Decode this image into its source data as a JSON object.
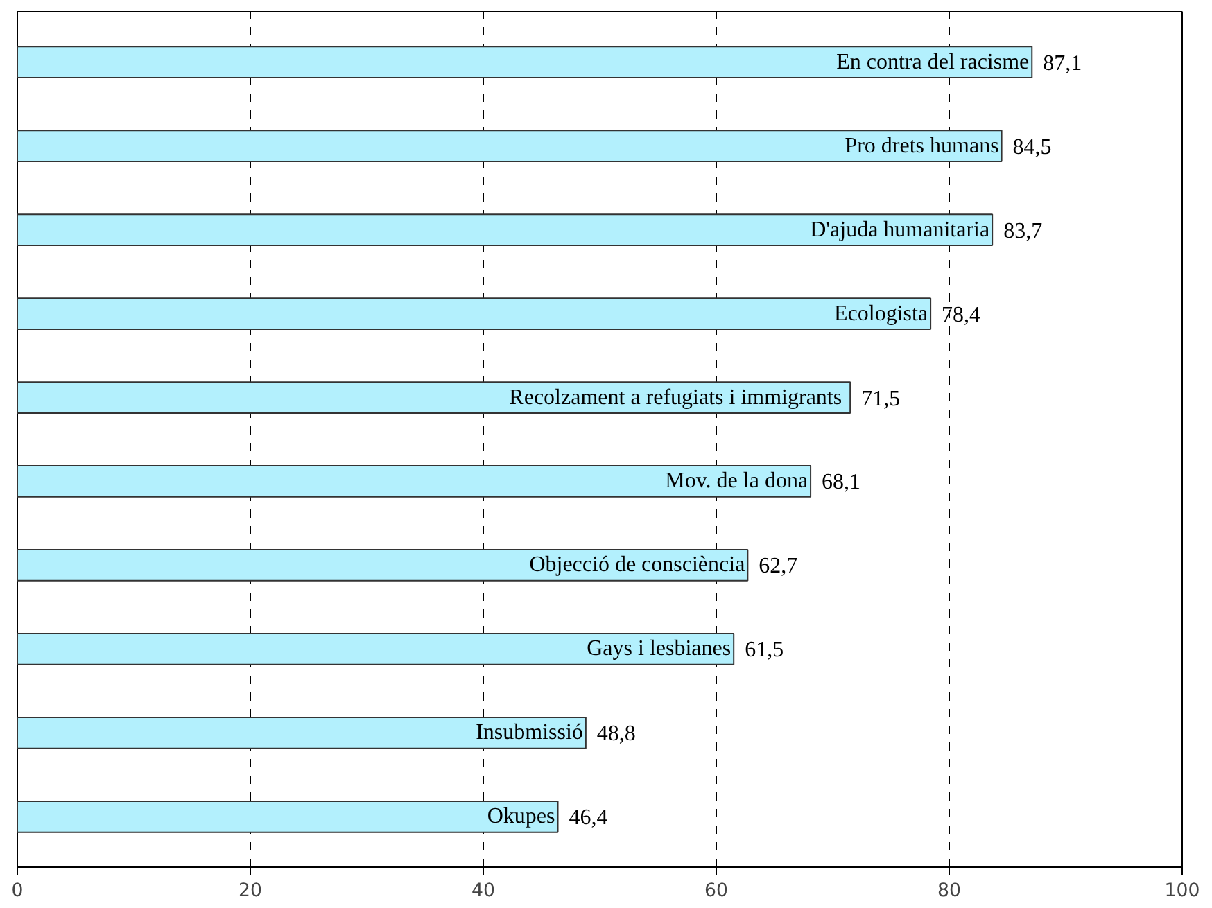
{
  "chart_data": {
    "type": "bar",
    "orientation": "horizontal",
    "categories": [
      "En contra del racisme",
      "Pro drets humans",
      "D'ajuda humanitaria",
      "Ecologista",
      "Recolzament a refugiats i  immigrants",
      "Mov. de la dona",
      "Objecció de consciència",
      "Gays i lesbianes",
      "Insubmissió",
      "Okupes"
    ],
    "values": [
      87.1,
      84.5,
      83.7,
      78.4,
      71.5,
      68.1,
      62.7,
      61.5,
      48.8,
      46.4
    ],
    "value_labels": [
      "87,1",
      "84,5",
      "83,7",
      "78,4",
      "71,5",
      "68,1",
      "62,7",
      "61,5",
      "48,8",
      "46,4"
    ],
    "color": "#b3f0fd",
    "xlim": [
      0,
      100
    ],
    "xticks": [
      0,
      20,
      40,
      60,
      80,
      100
    ],
    "grid": "x",
    "tick_labels": "x"
  }
}
